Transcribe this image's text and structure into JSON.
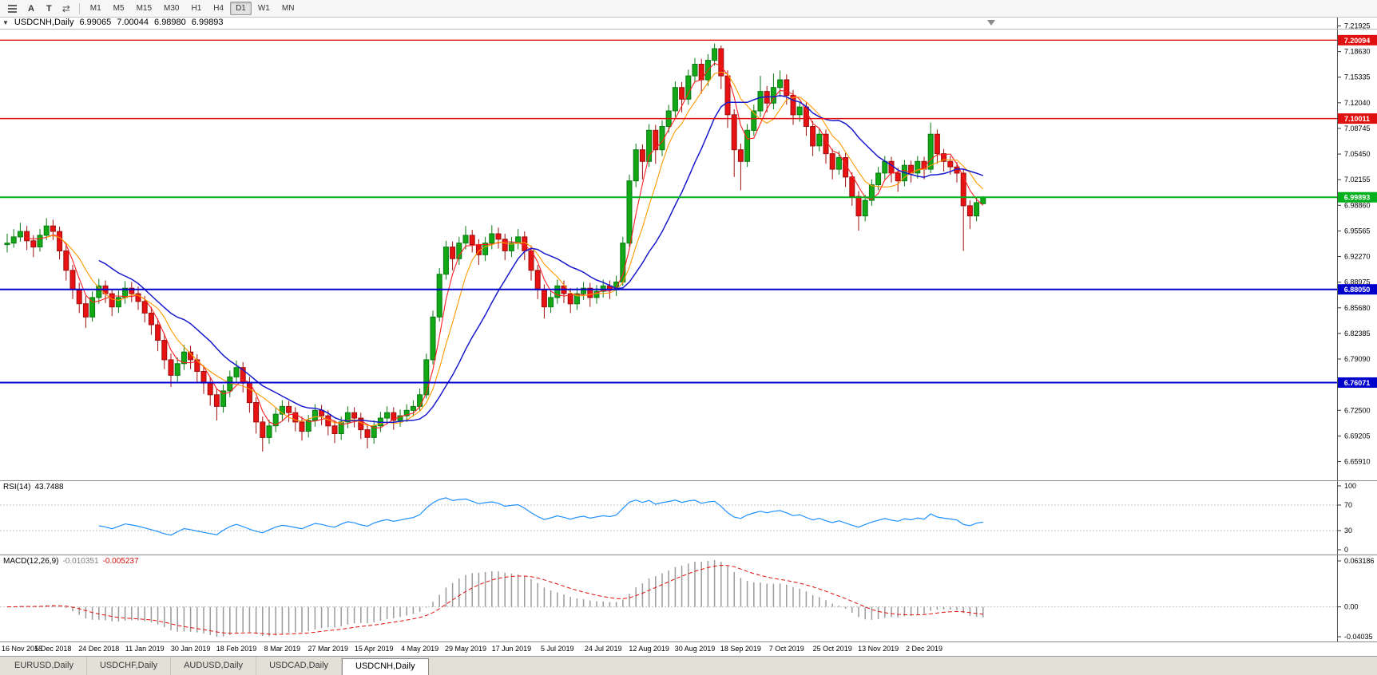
{
  "toolbar": {
    "buttons": [
      {
        "label": "A"
      },
      {
        "label": "T"
      }
    ],
    "timeframes": [
      {
        "label": "M1",
        "active": false
      },
      {
        "label": "M5",
        "active": false
      },
      {
        "label": "M15",
        "active": false
      },
      {
        "label": "M30",
        "active": false
      },
      {
        "label": "H1",
        "active": false
      },
      {
        "label": "H4",
        "active": false
      },
      {
        "label": "D1",
        "active": true
      },
      {
        "label": "W1",
        "active": false
      },
      {
        "label": "MN",
        "active": false
      }
    ]
  },
  "chart": {
    "header": {
      "symbol": "USDCNH,Daily",
      "open": "6.99065",
      "high": "7.00044",
      "low": "6.98980",
      "close": "6.99893"
    }
  },
  "chart_data": {
    "type": "candlestick",
    "symbol": "USDCNH",
    "timeframe": "Daily",
    "x_labels": [
      "16 Nov 2018",
      "5 Dec 2018",
      "24 Dec 2018",
      "11 Jan 2019",
      "30 Jan 2019",
      "18 Feb 2019",
      "8 Mar 2019",
      "27 Mar 2019",
      "15 Apr 2019",
      "4 May 2019",
      "29 May 2019",
      "17 Jun 2019",
      "5 Jul 2019",
      "24 Jul 2019",
      "12 Aug 2019",
      "30 Aug 2019",
      "18 Sep 2019",
      "7 Oct 2019",
      "25 Oct 2019",
      "13 Nov 2019",
      "2 Dec 2019"
    ],
    "y_ticks": [
      "7.21925",
      "7.18630",
      "7.15335",
      "7.12040",
      "7.08745",
      "7.05450",
      "7.02155",
      "6.98860",
      "6.95565",
      "6.92270",
      "6.88975",
      "6.85680",
      "6.82385",
      "6.79090",
      "6.75795",
      "6.72500",
      "6.69205",
      "6.65910"
    ],
    "y_range": [
      6.635,
      7.23
    ],
    "hlines": [
      {
        "price": 7.20094,
        "label": "7.20094",
        "color": "#e01010",
        "width": 1.4
      },
      {
        "price": 7.10011,
        "label": "7.10011",
        "color": "#e01010",
        "width": 1.4
      },
      {
        "price": 6.99893,
        "label": "6.99893",
        "color": "#00b01c",
        "width": 2
      },
      {
        "price": 6.8805,
        "label": "6.88050",
        "color": "#0000cc",
        "width": 2
      },
      {
        "price": 6.76071,
        "label": "6.76071",
        "color": "#0000cc",
        "width": 2
      }
    ],
    "colors": {
      "up": "#12a816",
      "up_stroke": "#077a10",
      "down": "#e81212",
      "down_stroke": "#9d0e0e",
      "ma_fast": "#ff2020",
      "ma_mid": "#ff9900",
      "ma_slow": "#1818cc"
    },
    "candles": [
      [
        6.938,
        6.952,
        6.928,
        6.94
      ],
      [
        6.94,
        6.958,
        6.934,
        6.948
      ],
      [
        6.948,
        6.966,
        6.942,
        6.955
      ],
      [
        6.955,
        6.962,
        6.931,
        6.943
      ],
      [
        6.943,
        6.95,
        6.922,
        6.935
      ],
      [
        6.935,
        6.958,
        6.929,
        6.95
      ],
      [
        6.95,
        6.972,
        6.944,
        6.962
      ],
      [
        6.962,
        6.97,
        6.944,
        6.955
      ],
      [
        6.955,
        6.961,
        6.919,
        6.93
      ],
      [
        6.93,
        6.938,
        6.892,
        6.905
      ],
      [
        6.905,
        6.912,
        6.868,
        6.88
      ],
      [
        6.88,
        6.889,
        6.85,
        6.862
      ],
      [
        6.862,
        6.872,
        6.831,
        6.845
      ],
      [
        6.845,
        6.878,
        6.839,
        6.87
      ],
      [
        6.87,
        6.894,
        6.862,
        6.885
      ],
      [
        6.885,
        6.892,
        6.863,
        6.875
      ],
      [
        6.875,
        6.881,
        6.846,
        6.858
      ],
      [
        6.858,
        6.879,
        6.85,
        6.87
      ],
      [
        6.87,
        6.891,
        6.862,
        6.882
      ],
      [
        6.882,
        6.89,
        6.864,
        6.875
      ],
      [
        6.875,
        6.884,
        6.854,
        6.865
      ],
      [
        6.865,
        6.872,
        6.838,
        6.85
      ],
      [
        6.85,
        6.858,
        6.822,
        6.835
      ],
      [
        6.835,
        6.843,
        6.801,
        6.815
      ],
      [
        6.815,
        6.824,
        6.778,
        6.79
      ],
      [
        6.79,
        6.798,
        6.755,
        6.77
      ],
      [
        6.77,
        6.793,
        6.762,
        6.785
      ],
      [
        6.785,
        6.809,
        6.777,
        6.8
      ],
      [
        6.8,
        6.808,
        6.778,
        6.79
      ],
      [
        6.79,
        6.797,
        6.761,
        6.775
      ],
      [
        6.775,
        6.783,
        6.746,
        6.76
      ],
      [
        6.76,
        6.768,
        6.731,
        6.745
      ],
      [
        6.745,
        6.753,
        6.712,
        6.73
      ],
      [
        6.73,
        6.758,
        6.722,
        6.75
      ],
      [
        6.75,
        6.776,
        6.742,
        6.768
      ],
      [
        6.768,
        6.789,
        6.76,
        6.78
      ],
      [
        6.78,
        6.787,
        6.748,
        6.76
      ],
      [
        6.76,
        6.768,
        6.722,
        6.735
      ],
      [
        6.735,
        6.742,
        6.695,
        6.71
      ],
      [
        6.71,
        6.717,
        6.672,
        6.69
      ],
      [
        6.69,
        6.713,
        6.682,
        6.705
      ],
      [
        6.705,
        6.728,
        6.697,
        6.72
      ],
      [
        6.72,
        6.738,
        6.712,
        6.73
      ],
      [
        6.73,
        6.737,
        6.71,
        6.722
      ],
      [
        6.722,
        6.729,
        6.698,
        6.71
      ],
      [
        6.71,
        6.717,
        6.686,
        6.698
      ],
      [
        6.698,
        6.719,
        6.69,
        6.712
      ],
      [
        6.712,
        6.733,
        6.704,
        6.725
      ],
      [
        6.725,
        6.732,
        6.706,
        6.718
      ],
      [
        6.718,
        6.725,
        6.693,
        6.705
      ],
      [
        6.705,
        6.712,
        6.683,
        6.695
      ],
      [
        6.695,
        6.717,
        6.687,
        6.71
      ],
      [
        6.71,
        6.73,
        6.702,
        6.722
      ],
      [
        6.722,
        6.729,
        6.703,
        6.715
      ],
      [
        6.715,
        6.722,
        6.688,
        6.7
      ],
      [
        6.7,
        6.707,
        6.676,
        6.69
      ],
      [
        6.69,
        6.712,
        6.682,
        6.705
      ],
      [
        6.705,
        6.723,
        6.697,
        6.715
      ],
      [
        6.715,
        6.73,
        6.707,
        6.722
      ],
      [
        6.722,
        6.729,
        6.7,
        6.712
      ],
      [
        6.712,
        6.726,
        6.704,
        6.718
      ],
      [
        6.718,
        6.733,
        6.71,
        6.725
      ],
      [
        6.725,
        6.738,
        6.717,
        6.73
      ],
      [
        6.73,
        6.753,
        6.724,
        6.745
      ],
      [
        6.745,
        6.798,
        6.74,
        6.79
      ],
      [
        6.79,
        6.853,
        6.784,
        6.845
      ],
      [
        6.845,
        6.908,
        6.839,
        6.9
      ],
      [
        6.9,
        6.943,
        6.893,
        6.935
      ],
      [
        6.935,
        6.942,
        6.905,
        6.92
      ],
      [
        6.92,
        6.948,
        6.912,
        6.94
      ],
      [
        6.94,
        6.962,
        6.932,
        6.95
      ],
      [
        6.95,
        6.957,
        6.928,
        6.938
      ],
      [
        6.938,
        6.945,
        6.912,
        6.925
      ],
      [
        6.925,
        6.948,
        6.917,
        6.94
      ],
      [
        6.94,
        6.963,
        6.932,
        6.952
      ],
      [
        6.952,
        6.96,
        6.933,
        6.945
      ],
      [
        6.945,
        6.952,
        6.918,
        6.93
      ],
      [
        6.93,
        6.948,
        6.922,
        6.94
      ],
      [
        6.94,
        6.958,
        6.932,
        6.948
      ],
      [
        6.948,
        6.955,
        6.918,
        6.93
      ],
      [
        6.93,
        6.937,
        6.892,
        6.905
      ],
      [
        6.905,
        6.912,
        6.868,
        6.88
      ],
      [
        6.88,
        6.887,
        6.843,
        6.858
      ],
      [
        6.858,
        6.878,
        6.85,
        6.87
      ],
      [
        6.87,
        6.893,
        6.862,
        6.885
      ],
      [
        6.885,
        6.892,
        6.863,
        6.875
      ],
      [
        6.875,
        6.882,
        6.85,
        6.862
      ],
      [
        6.862,
        6.883,
        6.854,
        6.875
      ],
      [
        6.875,
        6.89,
        6.867,
        6.882
      ],
      [
        6.882,
        6.889,
        6.858,
        6.87
      ],
      [
        6.87,
        6.886,
        6.862,
        6.878
      ],
      [
        6.878,
        6.893,
        6.87,
        6.885
      ],
      [
        6.885,
        6.892,
        6.868,
        6.88
      ],
      [
        6.88,
        6.898,
        6.872,
        6.89
      ],
      [
        6.89,
        6.948,
        6.885,
        6.94
      ],
      [
        6.94,
        7.028,
        6.935,
        7.02
      ],
      [
        7.02,
        7.068,
        7.012,
        7.06
      ],
      [
        7.06,
        7.067,
        7.022,
        7.045
      ],
      [
        7.045,
        7.093,
        7.038,
        7.085
      ],
      [
        7.085,
        7.092,
        7.042,
        7.06
      ],
      [
        7.06,
        7.098,
        7.052,
        7.09
      ],
      [
        7.09,
        7.118,
        7.082,
        7.11
      ],
      [
        7.11,
        7.148,
        7.102,
        7.14
      ],
      [
        7.14,
        7.147,
        7.108,
        7.125
      ],
      [
        7.125,
        7.163,
        7.118,
        7.155
      ],
      [
        7.155,
        7.178,
        7.147,
        7.17
      ],
      [
        7.17,
        7.177,
        7.132,
        7.15
      ],
      [
        7.15,
        7.183,
        7.142,
        7.175
      ],
      [
        7.175,
        7.1965,
        7.168,
        7.19
      ],
      [
        7.19,
        7.194,
        7.138,
        7.155
      ],
      [
        7.155,
        7.162,
        7.088,
        7.105
      ],
      [
        7.105,
        7.112,
        7.025,
        7.06
      ],
      [
        7.06,
        7.068,
        7.008,
        7.045
      ],
      [
        7.045,
        7.093,
        7.038,
        7.085
      ],
      [
        7.085,
        7.118,
        7.078,
        7.11
      ],
      [
        7.11,
        7.155,
        7.102,
        7.135
      ],
      [
        7.135,
        7.142,
        7.108,
        7.12
      ],
      [
        7.12,
        7.158,
        7.112,
        7.14
      ],
      [
        7.14,
        7.162,
        7.128,
        7.15
      ],
      [
        7.15,
        7.157,
        7.118,
        7.13
      ],
      [
        7.13,
        7.137,
        7.092,
        7.105
      ],
      [
        7.105,
        7.122,
        7.096,
        7.115
      ],
      [
        7.115,
        7.121,
        7.078,
        7.09
      ],
      [
        7.09,
        7.097,
        7.052,
        7.065
      ],
      [
        7.065,
        7.088,
        7.058,
        7.08
      ],
      [
        7.08,
        7.086,
        7.042,
        7.055
      ],
      [
        7.055,
        7.061,
        7.022,
        7.035
      ],
      [
        7.035,
        7.058,
        7.028,
        7.05
      ],
      [
        7.05,
        7.056,
        7.012,
        7.025
      ],
      [
        7.025,
        7.031,
        6.988,
        7.0
      ],
      [
        7.0,
        7.007,
        6.956,
        6.975
      ],
      [
        6.975,
        7.002,
        6.968,
        6.995
      ],
      [
        6.995,
        7.022,
        6.988,
        7.015
      ],
      [
        7.015,
        7.038,
        7.008,
        7.03
      ],
      [
        7.03,
        7.052,
        7.022,
        7.045
      ],
      [
        7.045,
        7.051,
        7.018,
        7.03
      ],
      [
        7.03,
        7.037,
        7.006,
        7.02
      ],
      [
        7.02,
        7.047,
        7.013,
        7.04
      ],
      [
        7.04,
        7.046,
        7.018,
        7.03
      ],
      [
        7.03,
        7.052,
        7.023,
        7.045
      ],
      [
        7.045,
        7.051,
        7.022,
        7.035
      ],
      [
        7.035,
        7.095,
        7.03,
        7.08
      ],
      [
        7.08,
        7.086,
        7.042,
        7.055
      ],
      [
        7.055,
        7.061,
        7.032,
        7.045
      ],
      [
        7.045,
        7.052,
        7.028,
        7.038
      ],
      [
        7.038,
        7.044,
        7.018,
        7.03
      ],
      [
        7.03,
        7.036,
        6.93,
        6.988
      ],
      [
        6.988,
        6.995,
        6.958,
        6.975
      ],
      [
        6.975,
        6.999,
        6.968,
        6.992
      ],
      [
        6.99065,
        7.00044,
        6.9898,
        6.99893
      ]
    ],
    "indicators": {
      "rsi": {
        "name": "RSI(14)",
        "value": "43.7488",
        "levels": [
          70,
          30
        ],
        "scale": [
          "100",
          "70",
          "30",
          "0"
        ],
        "color": "#1e90ff"
      },
      "macd": {
        "name": "MACD(12,26,9)",
        "main": "-0.010351",
        "signal": "-0.005237",
        "scale": {
          "top": "0.063186",
          "zero": "0.00",
          "bottom": "-0.04035"
        },
        "hist_color": "#9a9a9a",
        "signal_color": "#e01010"
      }
    }
  },
  "tabs": [
    {
      "label": "EURUSD,Daily",
      "active": false
    },
    {
      "label": "USDCHF,Daily",
      "active": false
    },
    {
      "label": "AUDUSD,Daily",
      "active": false
    },
    {
      "label": "USDCAD,Daily",
      "active": false
    },
    {
      "label": "USDCNH,Daily",
      "active": true
    }
  ]
}
